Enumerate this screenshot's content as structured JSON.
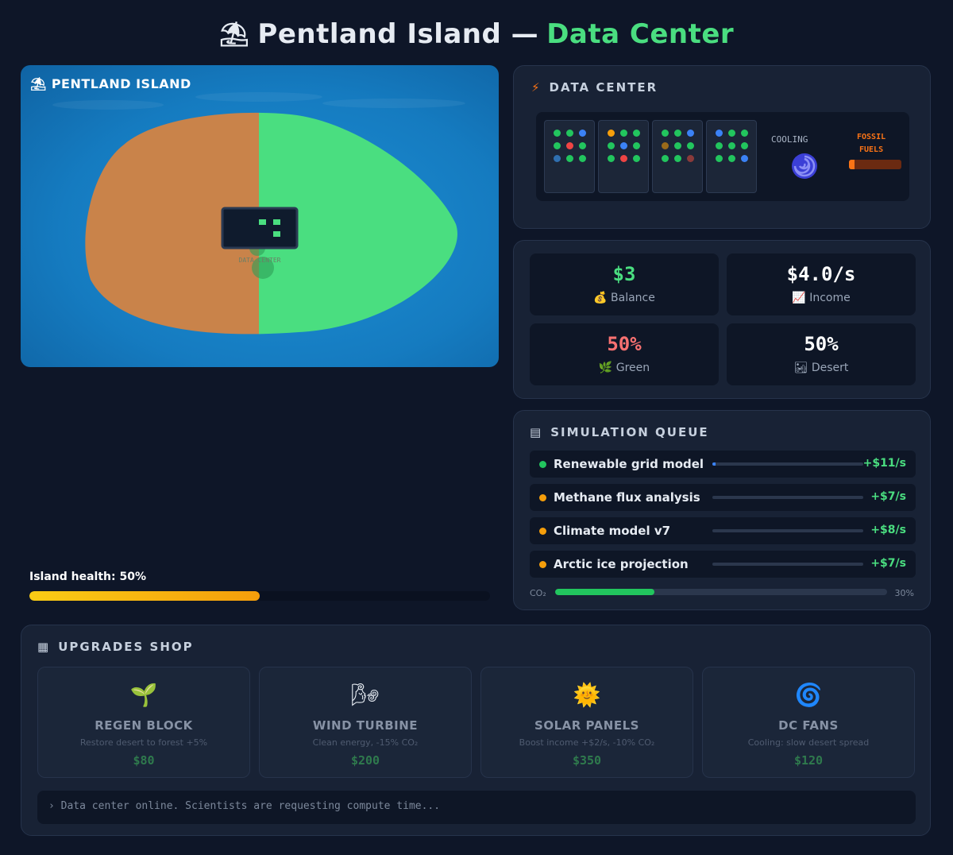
{
  "header": {
    "icon": "island-icon",
    "title_main": "Pentland Island —",
    "title_accent": "Data Center"
  },
  "map": {
    "label": "PENTLAND ISLAND",
    "building_label": "DATA CENTER",
    "colors": {
      "ocean": "#1585c9",
      "desert": "#c9834a",
      "green": "#4ade80"
    }
  },
  "health": {
    "label": "Island health: 50%",
    "value": 0.5
  },
  "datacenter": {
    "title": "DATA CENTER",
    "cooling_label": "COOLING",
    "fossil_label_1": "FOSSIL",
    "fossil_label_2": "FUELS",
    "fossil_level": 0.1
  },
  "stats": {
    "balance": {
      "value": "$3",
      "label": "Balance",
      "icon": "money-bag-icon"
    },
    "income": {
      "value": "$4.0/s",
      "label": "Income",
      "icon": "chart-up-icon"
    },
    "green": {
      "value": "50%",
      "label": "Green",
      "icon": "herb-icon"
    },
    "desert": {
      "value": "50%",
      "label": "Desert",
      "icon": "desert-icon"
    }
  },
  "queue": {
    "title": "SIMULATION QUEUE",
    "items": [
      {
        "name": "Renewable grid model",
        "rate": "+$11/s",
        "progress": 0.02,
        "dot": "#22c55e"
      },
      {
        "name": "Methane flux analysis",
        "rate": "+$7/s",
        "progress": 0,
        "dot": "#f59e0b"
      },
      {
        "name": "Climate model v7",
        "rate": "+$8/s",
        "progress": 0,
        "dot": "#f59e0b"
      },
      {
        "name": "Arctic ice projection",
        "rate": "+$7/s",
        "progress": 0,
        "dot": "#f59e0b"
      }
    ],
    "co2_label": "CO₂",
    "co2_value": "30%",
    "co2_level": 0.3
  },
  "shop": {
    "title": "UPGRADES SHOP",
    "items": [
      {
        "title": "REGEN BLOCK",
        "desc": "Restore desert to forest +5%",
        "price": "$80",
        "icon": "seedling-icon",
        "glyph": "🌱"
      },
      {
        "title": "WIND TURBINE",
        "desc": "Clean energy, -15% CO₂",
        "price": "$200",
        "icon": "wind-icon",
        "glyph": "🌬"
      },
      {
        "title": "SOLAR PANELS",
        "desc": "Boost income +$2/s, -10% CO₂",
        "price": "$350",
        "icon": "sun-icon",
        "glyph": "🌞"
      },
      {
        "title": "DC FANS",
        "desc": "Cooling: slow desert spread",
        "price": "$120",
        "icon": "cyclone-icon",
        "glyph": "🌀"
      }
    ],
    "log": "› Data center online. Scientists are requesting compute time..."
  }
}
